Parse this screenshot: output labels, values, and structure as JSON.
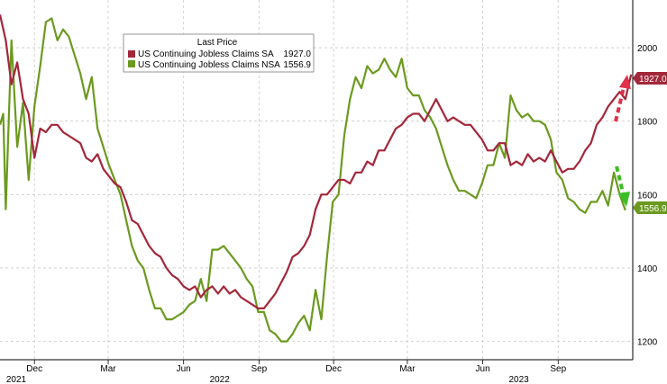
{
  "chart_data": {
    "type": "line",
    "legend": {
      "title": "Last Price",
      "placement": "top-left",
      "entries": [
        {
          "name": "US Continuing Jobless Claims SA",
          "value": "1927.0"
        },
        {
          "name": "US Continuing Jobless Claims NSA",
          "value": "1556.9"
        }
      ]
    },
    "ylim": [
      1150,
      2130
    ],
    "yticks": [
      1200,
      1400,
      1600,
      1800,
      2000
    ],
    "grid": true,
    "x_month_ticks": [
      {
        "label": "Dec",
        "date": "2021-12-01"
      },
      {
        "label": "Mar",
        "date": "2022-03-01"
      },
      {
        "label": "Jun",
        "date": "2022-06-01"
      },
      {
        "label": "Sep",
        "date": "2022-09-01"
      },
      {
        "label": "Dec",
        "date": "2022-12-01"
      },
      {
        "label": "Mar",
        "date": "2023-03-01"
      },
      {
        "label": "Jun",
        "date": "2023-06-01"
      },
      {
        "label": "Sep",
        "date": "2023-09-01"
      }
    ],
    "x_year_labels": [
      {
        "label": "2021",
        "date": "2021-11-01"
      },
      {
        "label": "2022",
        "date": "2022-07-15"
      },
      {
        "label": "2023",
        "date": "2023-07-15"
      }
    ],
    "x_range": [
      "2021-10-20",
      "2023-12-01"
    ],
    "series": [
      {
        "name": "US Continuing Jobless Claims SA",
        "color": "#a3273a",
        "last_label": "1927.0",
        "points": [
          [
            "2021-10-20",
            2090
          ],
          [
            "2021-10-27",
            2020
          ],
          [
            "2021-11-03",
            1900
          ],
          [
            "2021-11-10",
            1960
          ],
          [
            "2021-11-17",
            1860
          ],
          [
            "2021-11-24",
            1820
          ],
          [
            "2021-12-01",
            1700
          ],
          [
            "2021-12-08",
            1780
          ],
          [
            "2021-12-15",
            1770
          ],
          [
            "2021-12-22",
            1790
          ],
          [
            "2021-12-29",
            1790
          ],
          [
            "2022-01-05",
            1770
          ],
          [
            "2022-01-12",
            1760
          ],
          [
            "2022-01-19",
            1750
          ],
          [
            "2022-01-26",
            1740
          ],
          [
            "2022-02-02",
            1700
          ],
          [
            "2022-02-09",
            1690
          ],
          [
            "2022-02-16",
            1710
          ],
          [
            "2022-02-23",
            1670
          ],
          [
            "2022-03-02",
            1650
          ],
          [
            "2022-03-09",
            1630
          ],
          [
            "2022-03-16",
            1620
          ],
          [
            "2022-03-23",
            1580
          ],
          [
            "2022-03-30",
            1530
          ],
          [
            "2022-04-06",
            1520
          ],
          [
            "2022-04-13",
            1490
          ],
          [
            "2022-04-20",
            1460
          ],
          [
            "2022-04-27",
            1440
          ],
          [
            "2022-05-04",
            1430
          ],
          [
            "2022-05-11",
            1400
          ],
          [
            "2022-05-18",
            1380
          ],
          [
            "2022-05-25",
            1370
          ],
          [
            "2022-06-01",
            1350
          ],
          [
            "2022-06-08",
            1340
          ],
          [
            "2022-06-15",
            1350
          ],
          [
            "2022-06-22",
            1320
          ],
          [
            "2022-06-29",
            1340
          ],
          [
            "2022-07-06",
            1350
          ],
          [
            "2022-07-13",
            1330
          ],
          [
            "2022-07-20",
            1350
          ],
          [
            "2022-07-27",
            1330
          ],
          [
            "2022-08-03",
            1340
          ],
          [
            "2022-08-10",
            1320
          ],
          [
            "2022-08-17",
            1310
          ],
          [
            "2022-08-24",
            1300
          ],
          [
            "2022-08-31",
            1290
          ],
          [
            "2022-09-07",
            1290
          ],
          [
            "2022-09-14",
            1310
          ],
          [
            "2022-09-21",
            1330
          ],
          [
            "2022-09-28",
            1360
          ],
          [
            "2022-10-05",
            1390
          ],
          [
            "2022-10-12",
            1430
          ],
          [
            "2022-10-19",
            1440
          ],
          [
            "2022-10-26",
            1460
          ],
          [
            "2022-11-02",
            1490
          ],
          [
            "2022-11-09",
            1560
          ],
          [
            "2022-11-16",
            1600
          ],
          [
            "2022-11-23",
            1600
          ],
          [
            "2022-11-30",
            1620
          ],
          [
            "2022-12-07",
            1640
          ],
          [
            "2022-12-14",
            1640
          ],
          [
            "2022-12-21",
            1630
          ],
          [
            "2022-12-28",
            1660
          ],
          [
            "2023-01-04",
            1660
          ],
          [
            "2023-01-11",
            1690
          ],
          [
            "2023-01-18",
            1680
          ],
          [
            "2023-01-25",
            1720
          ],
          [
            "2023-02-01",
            1720
          ],
          [
            "2023-02-08",
            1750
          ],
          [
            "2023-02-15",
            1780
          ],
          [
            "2023-02-22",
            1790
          ],
          [
            "2023-03-01",
            1810
          ],
          [
            "2023-03-08",
            1820
          ],
          [
            "2023-03-15",
            1820
          ],
          [
            "2023-03-22",
            1800
          ],
          [
            "2023-03-29",
            1830
          ],
          [
            "2023-04-05",
            1860
          ],
          [
            "2023-04-12",
            1830
          ],
          [
            "2023-04-19",
            1800
          ],
          [
            "2023-04-26",
            1810
          ],
          [
            "2023-05-03",
            1800
          ],
          [
            "2023-05-10",
            1790
          ],
          [
            "2023-05-17",
            1790
          ],
          [
            "2023-05-24",
            1770
          ],
          [
            "2023-05-31",
            1750
          ],
          [
            "2023-06-07",
            1720
          ],
          [
            "2023-06-14",
            1720
          ],
          [
            "2023-06-21",
            1740
          ],
          [
            "2023-06-28",
            1740
          ],
          [
            "2023-07-05",
            1680
          ],
          [
            "2023-07-12",
            1690
          ],
          [
            "2023-07-19",
            1680
          ],
          [
            "2023-07-26",
            1710
          ],
          [
            "2023-08-02",
            1690
          ],
          [
            "2023-08-09",
            1700
          ],
          [
            "2023-08-16",
            1690
          ],
          [
            "2023-08-23",
            1720
          ],
          [
            "2023-08-30",
            1690
          ],
          [
            "2023-09-06",
            1660
          ],
          [
            "2023-09-13",
            1670
          ],
          [
            "2023-09-20",
            1670
          ],
          [
            "2023-09-27",
            1690
          ],
          [
            "2023-10-04",
            1720
          ],
          [
            "2023-10-11",
            1740
          ],
          [
            "2023-10-18",
            1790
          ],
          [
            "2023-10-25",
            1810
          ],
          [
            "2023-11-01",
            1840
          ],
          [
            "2023-11-08",
            1860
          ],
          [
            "2023-11-15",
            1880
          ],
          [
            "2023-11-22",
            1860
          ],
          [
            "2023-11-29",
            1927
          ]
        ]
      },
      {
        "name": "US Continuing Jobless Claims NSA",
        "color": "#6b9a1f",
        "last_label": "1556.9",
        "points": [
          [
            "2021-10-20",
            1790
          ],
          [
            "2021-10-24",
            1820
          ],
          [
            "2021-10-27",
            1560
          ],
          [
            "2021-11-03",
            2020
          ],
          [
            "2021-11-10",
            1730
          ],
          [
            "2021-11-17",
            1850
          ],
          [
            "2021-11-24",
            1640
          ],
          [
            "2021-12-01",
            1840
          ],
          [
            "2021-12-08",
            1950
          ],
          [
            "2021-12-15",
            2070
          ],
          [
            "2021-12-22",
            2080
          ],
          [
            "2021-12-29",
            2020
          ],
          [
            "2022-01-05",
            2050
          ],
          [
            "2022-01-12",
            2030
          ],
          [
            "2022-01-19",
            1980
          ],
          [
            "2022-01-26",
            1930
          ],
          [
            "2022-02-02",
            1860
          ],
          [
            "2022-02-09",
            1920
          ],
          [
            "2022-02-16",
            1780
          ],
          [
            "2022-02-23",
            1730
          ],
          [
            "2022-03-02",
            1680
          ],
          [
            "2022-03-09",
            1640
          ],
          [
            "2022-03-16",
            1600
          ],
          [
            "2022-03-23",
            1530
          ],
          [
            "2022-03-30",
            1460
          ],
          [
            "2022-04-06",
            1420
          ],
          [
            "2022-04-13",
            1400
          ],
          [
            "2022-04-20",
            1340
          ],
          [
            "2022-04-27",
            1290
          ],
          [
            "2022-05-04",
            1290
          ],
          [
            "2022-05-11",
            1260
          ],
          [
            "2022-05-18",
            1260
          ],
          [
            "2022-05-25",
            1270
          ],
          [
            "2022-06-01",
            1280
          ],
          [
            "2022-06-08",
            1300
          ],
          [
            "2022-06-15",
            1310
          ],
          [
            "2022-06-22",
            1370
          ],
          [
            "2022-06-29",
            1310
          ],
          [
            "2022-07-06",
            1450
          ],
          [
            "2022-07-13",
            1450
          ],
          [
            "2022-07-20",
            1460
          ],
          [
            "2022-07-27",
            1440
          ],
          [
            "2022-08-03",
            1420
          ],
          [
            "2022-08-10",
            1400
          ],
          [
            "2022-08-17",
            1370
          ],
          [
            "2022-08-24",
            1350
          ],
          [
            "2022-08-31",
            1280
          ],
          [
            "2022-09-07",
            1280
          ],
          [
            "2022-09-14",
            1230
          ],
          [
            "2022-09-21",
            1220
          ],
          [
            "2022-09-28",
            1200
          ],
          [
            "2022-10-05",
            1200
          ],
          [
            "2022-10-12",
            1220
          ],
          [
            "2022-10-19",
            1250
          ],
          [
            "2022-10-26",
            1270
          ],
          [
            "2022-11-02",
            1230
          ],
          [
            "2022-11-09",
            1340
          ],
          [
            "2022-11-16",
            1260
          ],
          [
            "2022-11-23",
            1430
          ],
          [
            "2022-11-30",
            1580
          ],
          [
            "2022-12-07",
            1600
          ],
          [
            "2022-12-14",
            1760
          ],
          [
            "2022-12-21",
            1860
          ],
          [
            "2022-12-28",
            1920
          ],
          [
            "2023-01-04",
            1890
          ],
          [
            "2023-01-11",
            1950
          ],
          [
            "2023-01-18",
            1930
          ],
          [
            "2023-01-25",
            1940
          ],
          [
            "2023-02-01",
            1970
          ],
          [
            "2023-02-08",
            1940
          ],
          [
            "2023-02-15",
            1920
          ],
          [
            "2023-02-22",
            1970
          ],
          [
            "2023-03-01",
            1890
          ],
          [
            "2023-03-08",
            1870
          ],
          [
            "2023-03-15",
            1870
          ],
          [
            "2023-03-22",
            1830
          ],
          [
            "2023-03-29",
            1810
          ],
          [
            "2023-04-05",
            1780
          ],
          [
            "2023-04-12",
            1730
          ],
          [
            "2023-04-19",
            1680
          ],
          [
            "2023-04-26",
            1640
          ],
          [
            "2023-05-03",
            1610
          ],
          [
            "2023-05-10",
            1610
          ],
          [
            "2023-05-17",
            1600
          ],
          [
            "2023-05-24",
            1590
          ],
          [
            "2023-05-31",
            1630
          ],
          [
            "2023-06-07",
            1680
          ],
          [
            "2023-06-14",
            1680
          ],
          [
            "2023-06-21",
            1740
          ],
          [
            "2023-06-28",
            1700
          ],
          [
            "2023-07-05",
            1870
          ],
          [
            "2023-07-12",
            1830
          ],
          [
            "2023-07-19",
            1810
          ],
          [
            "2023-07-26",
            1820
          ],
          [
            "2023-08-02",
            1800
          ],
          [
            "2023-08-09",
            1800
          ],
          [
            "2023-08-16",
            1790
          ],
          [
            "2023-08-23",
            1750
          ],
          [
            "2023-08-30",
            1660
          ],
          [
            "2023-09-06",
            1640
          ],
          [
            "2023-09-13",
            1590
          ],
          [
            "2023-09-20",
            1580
          ],
          [
            "2023-09-27",
            1560
          ],
          [
            "2023-10-04",
            1550
          ],
          [
            "2023-10-11",
            1580
          ],
          [
            "2023-10-18",
            1580
          ],
          [
            "2023-10-25",
            1610
          ],
          [
            "2023-11-01",
            1570
          ],
          [
            "2023-11-08",
            1660
          ],
          [
            "2023-11-15",
            1600
          ],
          [
            "2023-11-22",
            1556.9
          ]
        ]
      }
    ]
  }
}
